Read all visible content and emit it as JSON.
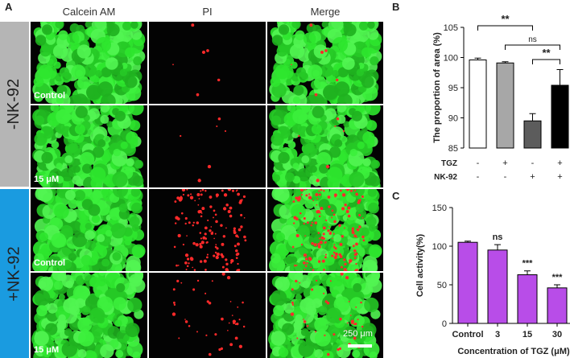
{
  "panel_a": {
    "letter": "A",
    "columns": [
      "Calcein AM",
      "PI",
      "Merge"
    ],
    "groups": [
      {
        "label": "-NK-92",
        "color": "#b5b5b5",
        "rows": [
          "Control",
          "15 μM"
        ]
      },
      {
        "label": "+NK-92",
        "color": "#1a9be0",
        "rows": [
          "Control",
          "15 μM"
        ]
      }
    ],
    "scale_bar": "250 μm"
  },
  "chart_data": [
    {
      "panel": "B",
      "type": "bar",
      "ylabel": "The proportion of area (%)",
      "ylim": [
        85,
        105
      ],
      "yticks": [
        "85",
        "90",
        "95",
        "100",
        "105"
      ],
      "row_labels": [
        "TGZ",
        "NK-92"
      ],
      "conditions": [
        [
          "-",
          "-"
        ],
        [
          "+",
          "-"
        ],
        [
          "-",
          "+"
        ],
        [
          "+",
          "+"
        ]
      ],
      "values": [
        99.6,
        99.1,
        89.5,
        95.4
      ],
      "errors": [
        0.3,
        0.2,
        1.2,
        2.6
      ],
      "bar_colors": [
        "#ffffff",
        "#a7a7a7",
        "#5c5c5c",
        "#000000"
      ],
      "significance": [
        {
          "from": 0,
          "to": 2,
          "label": "**",
          "level": 0
        },
        {
          "from": 1,
          "to": 3,
          "label": "ns",
          "level": 1
        },
        {
          "from": 2,
          "to": 3,
          "label": "**",
          "level": 2
        }
      ]
    },
    {
      "panel": "C",
      "type": "bar",
      "categories": [
        "Control",
        "3",
        "15",
        "30"
      ],
      "values": [
        105,
        95,
        63,
        46
      ],
      "errors": [
        1.5,
        7,
        5,
        4
      ],
      "significance": [
        "",
        "ns",
        "***",
        "***"
      ],
      "ylabel": "Cell activity(%)",
      "xlabel": "Concentration of TGZ (μM)",
      "ylim": [
        0,
        150
      ],
      "yticks": [
        "0",
        "50",
        "100",
        "150"
      ],
      "bar_color": "#b84de8"
    }
  ]
}
